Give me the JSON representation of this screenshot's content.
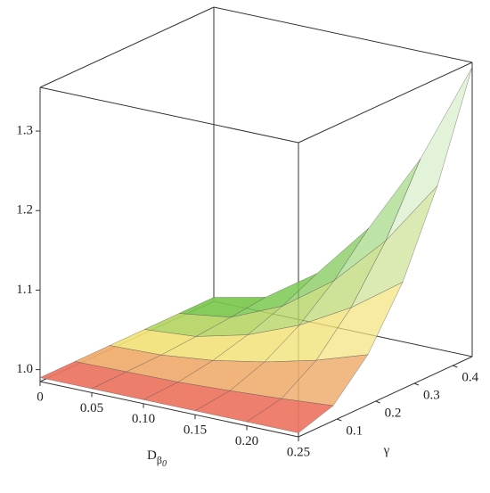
{
  "chart_data": {
    "type": "surface",
    "xlabel": {
      "main": "D",
      "sub": "β",
      "subsub": "0"
    },
    "ylabel": "γ",
    "x": [
      0,
      0.05,
      0.1,
      0.15,
      0.2,
      0.25
    ],
    "y": [
      0,
      0.09,
      0.18,
      0.27,
      0.36,
      0.45
    ],
    "z": [
      [
        0.99,
        0.99,
        0.99,
        0.99,
        0.99,
        0.99
      ],
      [
        0.99,
        0.991,
        0.992,
        0.995,
        0.999,
        1.004
      ],
      [
        0.99,
        0.992,
        0.999,
        1.011,
        1.027,
        1.048
      ],
      [
        0.99,
        0.995,
        1.011,
        1.037,
        1.073,
        1.119
      ],
      [
        0.99,
        0.999,
        1.027,
        1.073,
        1.137,
        1.22
      ],
      [
        0.99,
        1.004,
        1.048,
        1.119,
        1.22,
        1.349
      ]
    ],
    "xlim": [
      0,
      0.25
    ],
    "ylim": [
      0,
      0.45
    ],
    "zlim": [
      0.985,
      1.355
    ],
    "xticks": [
      0,
      {
        "value": 0.05,
        "label": "0.05"
      },
      {
        "value": 0.1,
        "label": "0.10"
      },
      {
        "value": 0.15,
        "label": "0.15"
      },
      {
        "value": 0.2,
        "label": "0.20"
      },
      {
        "value": 0.25,
        "label": "0.25"
      }
    ],
    "yticks": [
      0.1,
      0.2,
      0.3,
      0.4
    ],
    "zticks": [
      {
        "value": 1.0,
        "label": "1.0"
      },
      {
        "value": 1.1,
        "label": "1.1"
      },
      {
        "value": 1.2,
        "label": "1.2"
      },
      {
        "value": 1.3,
        "label": "1.3"
      }
    ],
    "colormap": [
      "#ea5a5a",
      "#f2e27a",
      "#5cc044"
    ],
    "mesh_color": "#555555",
    "box_color": "#333333"
  }
}
